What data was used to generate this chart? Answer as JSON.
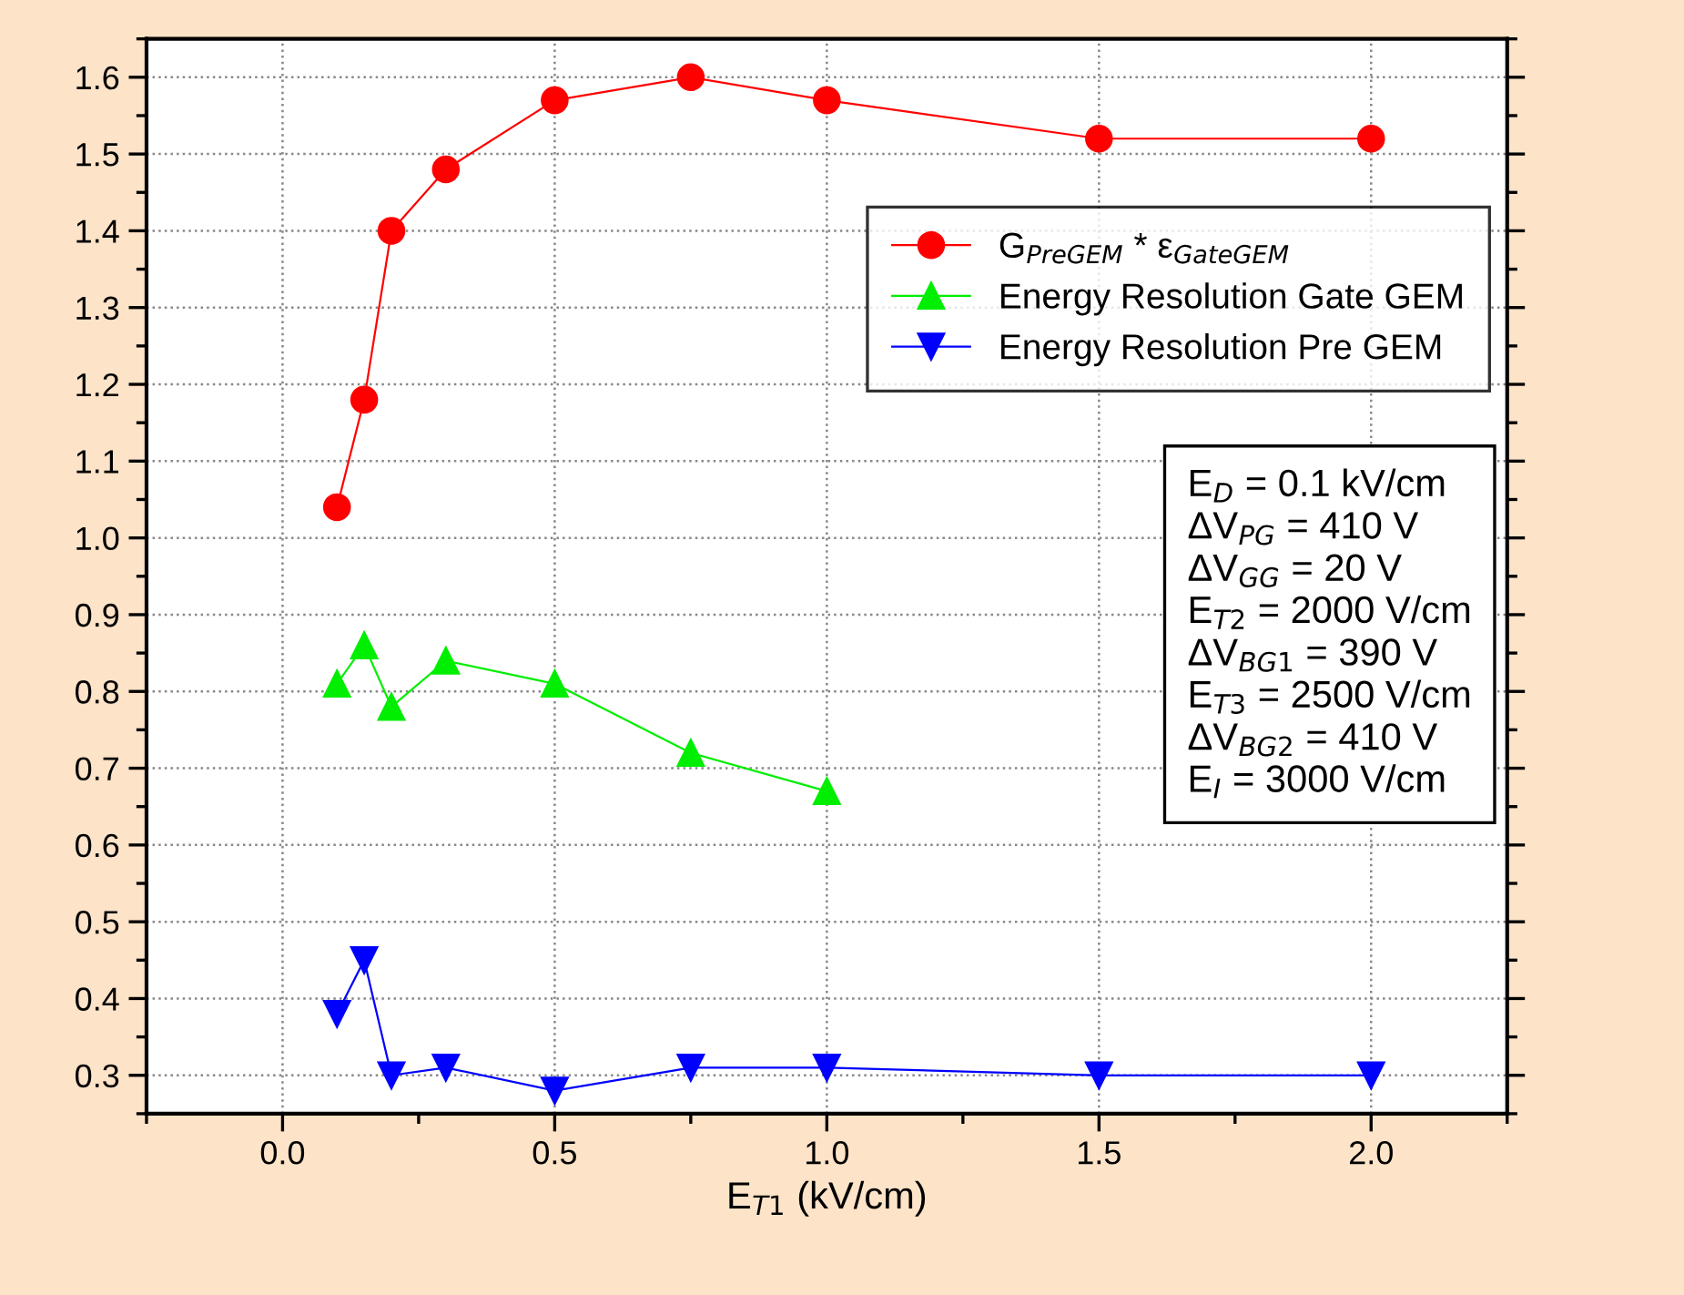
{
  "chart_data": {
    "type": "line",
    "xlabel": "E$_{T1}$ (kV/cm)",
    "x": [
      0.1,
      0.15,
      0.2,
      0.3,
      0.5,
      0.75,
      1.0,
      1.5,
      2.0
    ],
    "series": [
      {
        "name": "G$_{PreGEM}$ * ε$_{GateGEM}$",
        "color": "#ff0000",
        "marker": "circle",
        "values": [
          1.04,
          1.18,
          1.4,
          1.48,
          1.57,
          1.6,
          1.57,
          1.52,
          1.52
        ]
      },
      {
        "name": "Energy Resolution Gate GEM",
        "color": "#00ee00",
        "marker": "triangle",
        "x": [
          0.1,
          0.15,
          0.2,
          0.3,
          0.5,
          0.75,
          1.0
        ],
        "values": [
          0.81,
          0.86,
          0.78,
          0.84,
          0.81,
          0.72,
          0.67
        ]
      },
      {
        "name": "Energy Resolution Pre GEM",
        "color": "#0000ff",
        "marker": "triangle_down",
        "values": [
          0.38,
          0.45,
          0.3,
          0.31,
          0.28,
          0.31,
          0.31,
          0.3,
          0.3
        ]
      }
    ],
    "xlim": [
      -0.25,
      2.25
    ],
    "xticks": [
      {
        "value": 0,
        "label": "0.0"
      },
      0.5,
      {
        "value": 1,
        "label": "1.0"
      },
      1.5,
      {
        "value": 2,
        "label": "2.0"
      }
    ],
    "ylim": [
      0.25,
      1.65
    ],
    "yticks": [
      0.3,
      0.4,
      0.5,
      0.6,
      0.7,
      0.8,
      0.9,
      {
        "value": 1,
        "label": "1.0"
      },
      1.1,
      1.2,
      1.3,
      1.4,
      1.5,
      1.6
    ],
    "grid": true,
    "legend": "top right",
    "annotations": [
      "E$_{D}$ = 0.1 kV/cm",
      "ΔV$_{PG}$ = 410 V",
      "ΔV$_{GG}$ = 20 V",
      "E$_{T2}$ = 2000 V/cm",
      "ΔV$_{BG1}$ = 390 V",
      "E$_{T3}$ = 2500 V/cm",
      "ΔV$_{BG2}$ = 410 V",
      "E$_{I}$ = 3000 V/cm"
    ]
  }
}
